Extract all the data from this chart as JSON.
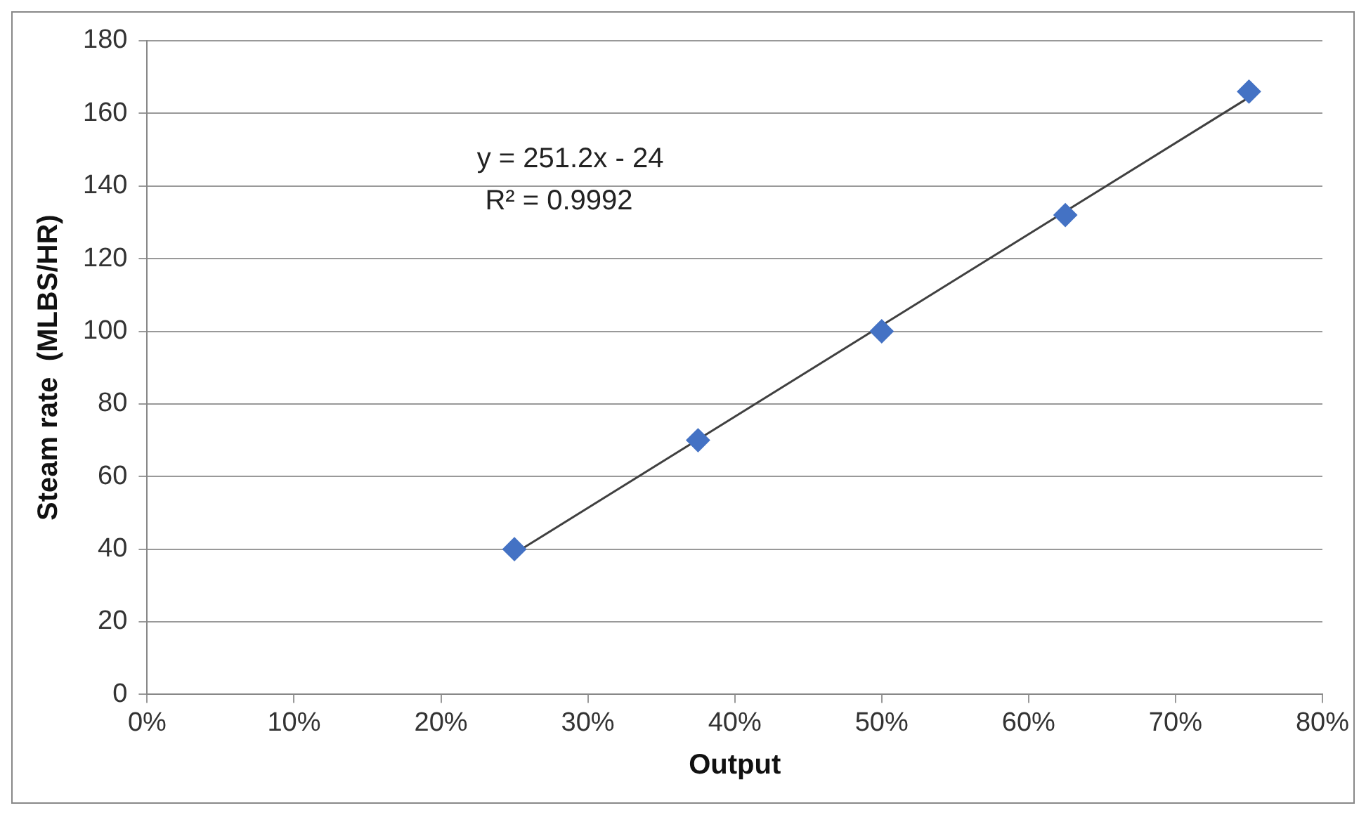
{
  "chart_data": {
    "type": "scatter",
    "xlabel": "Output",
    "ylabel": "Steam rate  (MLBS/HR)",
    "x": [
      0.25,
      0.375,
      0.5,
      0.625,
      0.75
    ],
    "series": [
      {
        "type": "scatter",
        "color": "#4472c4",
        "marker": "diamond",
        "values": [
          40,
          70,
          100,
          132,
          166
        ]
      },
      {
        "type": "line",
        "color": "#404040",
        "marker": "none",
        "x": [
          0.25,
          0.75
        ],
        "values": [
          38.8,
          164.4
        ]
      }
    ],
    "xlim": [
      0,
      0.8
    ],
    "xticks": [
      {
        "value": 0,
        "label": "0%"
      },
      {
        "value": 0.1,
        "label": "10%"
      },
      {
        "value": 0.2,
        "label": "20%"
      },
      {
        "value": 0.3,
        "label": "30%"
      },
      {
        "value": 0.4,
        "label": "40%"
      },
      {
        "value": 0.5,
        "label": "50%"
      },
      {
        "value": 0.6,
        "label": "60%"
      },
      {
        "value": 0.7,
        "label": "70%"
      },
      {
        "value": 0.8,
        "label": "80%"
      }
    ],
    "ylim": [
      0,
      180
    ],
    "yticks": [
      0,
      20,
      40,
      60,
      80,
      100,
      120,
      140,
      160,
      180
    ],
    "grid": "y",
    "legend": false,
    "annotations": [
      "y = 251.2x - 24",
      "R² = 0.9992"
    ]
  }
}
